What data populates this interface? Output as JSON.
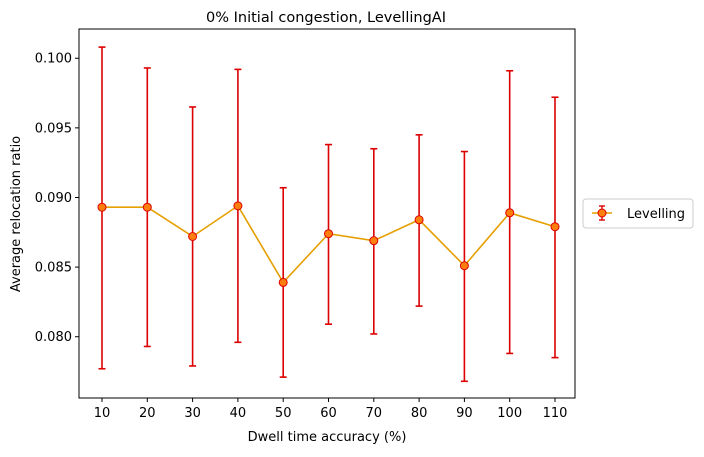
{
  "chart_data": {
    "type": "line",
    "title": "0% Initial congestion, LevellingAI",
    "xlabel": "Dwell time accuracy (%)",
    "ylabel": "Average relocation ratio",
    "categories": [
      "10",
      "20",
      "30",
      "40",
      "50",
      "60",
      "70",
      "80",
      "90",
      "100",
      "110"
    ],
    "ylim": [
      0.0756,
      0.1021
    ],
    "yticks": [
      "0.080",
      "0.085",
      "0.090",
      "0.095",
      "0.100"
    ],
    "grid": false,
    "legend_position": "right",
    "series": [
      {
        "name": "Levelling",
        "values": [
          0.0893,
          0.0893,
          0.0872,
          0.0894,
          0.0839,
          0.0874,
          0.0869,
          0.0884,
          0.0851,
          0.0889,
          0.0879
        ],
        "err_low": [
          0.0777,
          0.0793,
          0.0779,
          0.0796,
          0.0771,
          0.0809,
          0.0802,
          0.0822,
          0.0768,
          0.0788,
          0.0785
        ],
        "err_high": [
          0.1008,
          0.0993,
          0.0965,
          0.0992,
          0.0907,
          0.0938,
          0.0935,
          0.0945,
          0.0933,
          0.0991,
          0.0972
        ],
        "line_color": "#e69f00",
        "marker_color": "#ff7f0e",
        "error_color": "#dd0000"
      }
    ]
  }
}
